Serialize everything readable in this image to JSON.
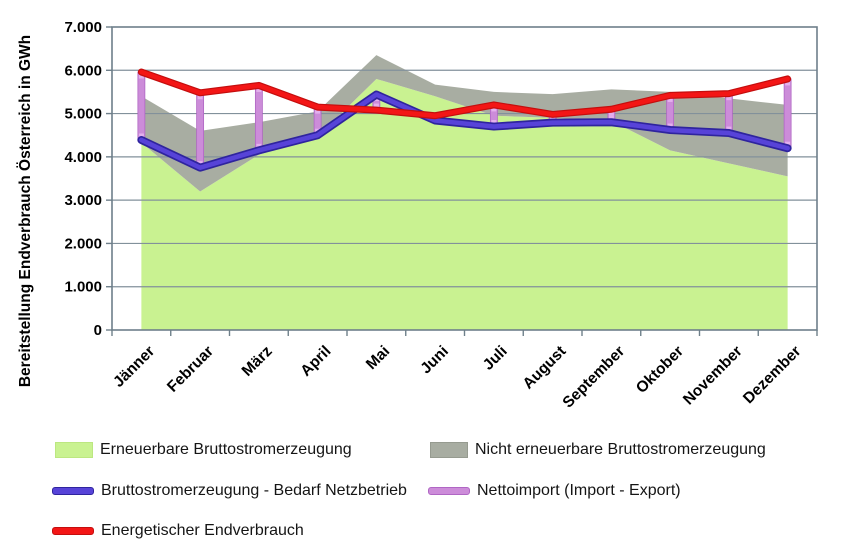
{
  "y_axis": {
    "title": "Bereitstellung Endverbrauch Österreich in GWh",
    "tick_labels": [
      "0",
      "1.000",
      "2.000",
      "3.000",
      "4.000",
      "5.000",
      "6.000",
      "7.000"
    ]
  },
  "x_axis": {
    "categories": [
      "Jänner",
      "Februar",
      "März",
      "April",
      "Mai",
      "Juni",
      "Juli",
      "August",
      "September",
      "Oktober",
      "November",
      "Dezember"
    ]
  },
  "legend": {
    "items": [
      {
        "label": "Erneuerbare Bruttostromerzeugung",
        "color": "#C9F291",
        "edge": "#BCE781",
        "type": "area"
      },
      {
        "label": "Nicht erneuerbare Bruttostromerzeugung",
        "color": "#A8ADA2",
        "edge": "#969B90",
        "type": "area"
      },
      {
        "label": "Bruttostromerzeugung - Bedarf Netzbetrieb",
        "color": "#5743D8",
        "edge": "#2F249E",
        "type": "line"
      },
      {
        "label": "Nettoimport (Import - Export)",
        "color": "#CC8CD9",
        "edge": "#B066C4",
        "type": "line"
      },
      {
        "label": "Energetischer Endverbrauch",
        "color": "#F31616",
        "edge": "#C40E0E",
        "type": "line"
      }
    ]
  },
  "colors": {
    "grid": "#82919B",
    "axis": "#6E7F8A",
    "text": "#000000",
    "background": "#FFFFFF"
  },
  "chart_data": {
    "type": "area",
    "subtype": "stacked-area-with-lines-and-range-bars",
    "title": "",
    "xlabel": "",
    "ylabel": "Bereitstellung Endverbrauch Österreich in GWh",
    "ylim": [
      0,
      7000
    ],
    "y_tick_step": 1000,
    "grid": true,
    "legend_position": "bottom",
    "categories": [
      "Jänner",
      "Februar",
      "März",
      "April",
      "Mai",
      "Juni",
      "Juli",
      "August",
      "September",
      "Oktober",
      "November",
      "Dezember"
    ],
    "units": "GWh",
    "series": [
      {
        "name": "Erneuerbare Bruttostromerzeugung",
        "role": "renewable",
        "type": "area",
        "stack": "generation",
        "color": "#C9F291",
        "values": [
          4330,
          3200,
          4050,
          4470,
          5800,
          5400,
          4950,
          4900,
          4830,
          4150,
          3850,
          3550
        ]
      },
      {
        "name": "Nicht erneuerbare Bruttostromerzeugung",
        "role": "nonrenewable",
        "type": "area",
        "stack": "generation",
        "color": "#A8ADA2",
        "values": [
          1070,
          1400,
          750,
          580,
          550,
          270,
          550,
          550,
          730,
          1350,
          1500,
          1650
        ]
      },
      {
        "name": "Bruttostromerzeugung - Bedarf Netzbetrieb",
        "role": "generation",
        "type": "line",
        "color": "#5743D8",
        "edge": "#2F249E",
        "values": [
          4390,
          3750,
          4150,
          4500,
          5440,
          4840,
          4700,
          4790,
          4800,
          4620,
          4550,
          4200
        ]
      },
      {
        "name": "Nettoimport (Import - Export)",
        "role": "netimport",
        "type": "vertical-range-bar",
        "color": "#CC8CD9",
        "edge": "#B066C4",
        "light": "#E4B0EE",
        "note": "drawn as vertical bars from (Bruttostromerzeugung - Bedarf Netzbetrieb) to (Energetischer Endverbrauch)",
        "values": [
          1570,
          1730,
          1500,
          650,
          -360,
          110,
          500,
          190,
          300,
          800,
          910,
          1600
        ]
      },
      {
        "name": "Energetischer Endverbrauch",
        "role": "consumption",
        "type": "line",
        "color": "#F31616",
        "edge": "#C40E0E",
        "values": [
          5960,
          5480,
          5650,
          5150,
          5080,
          4950,
          5200,
          4980,
          5100,
          5420,
          5460,
          5800
        ]
      }
    ]
  }
}
